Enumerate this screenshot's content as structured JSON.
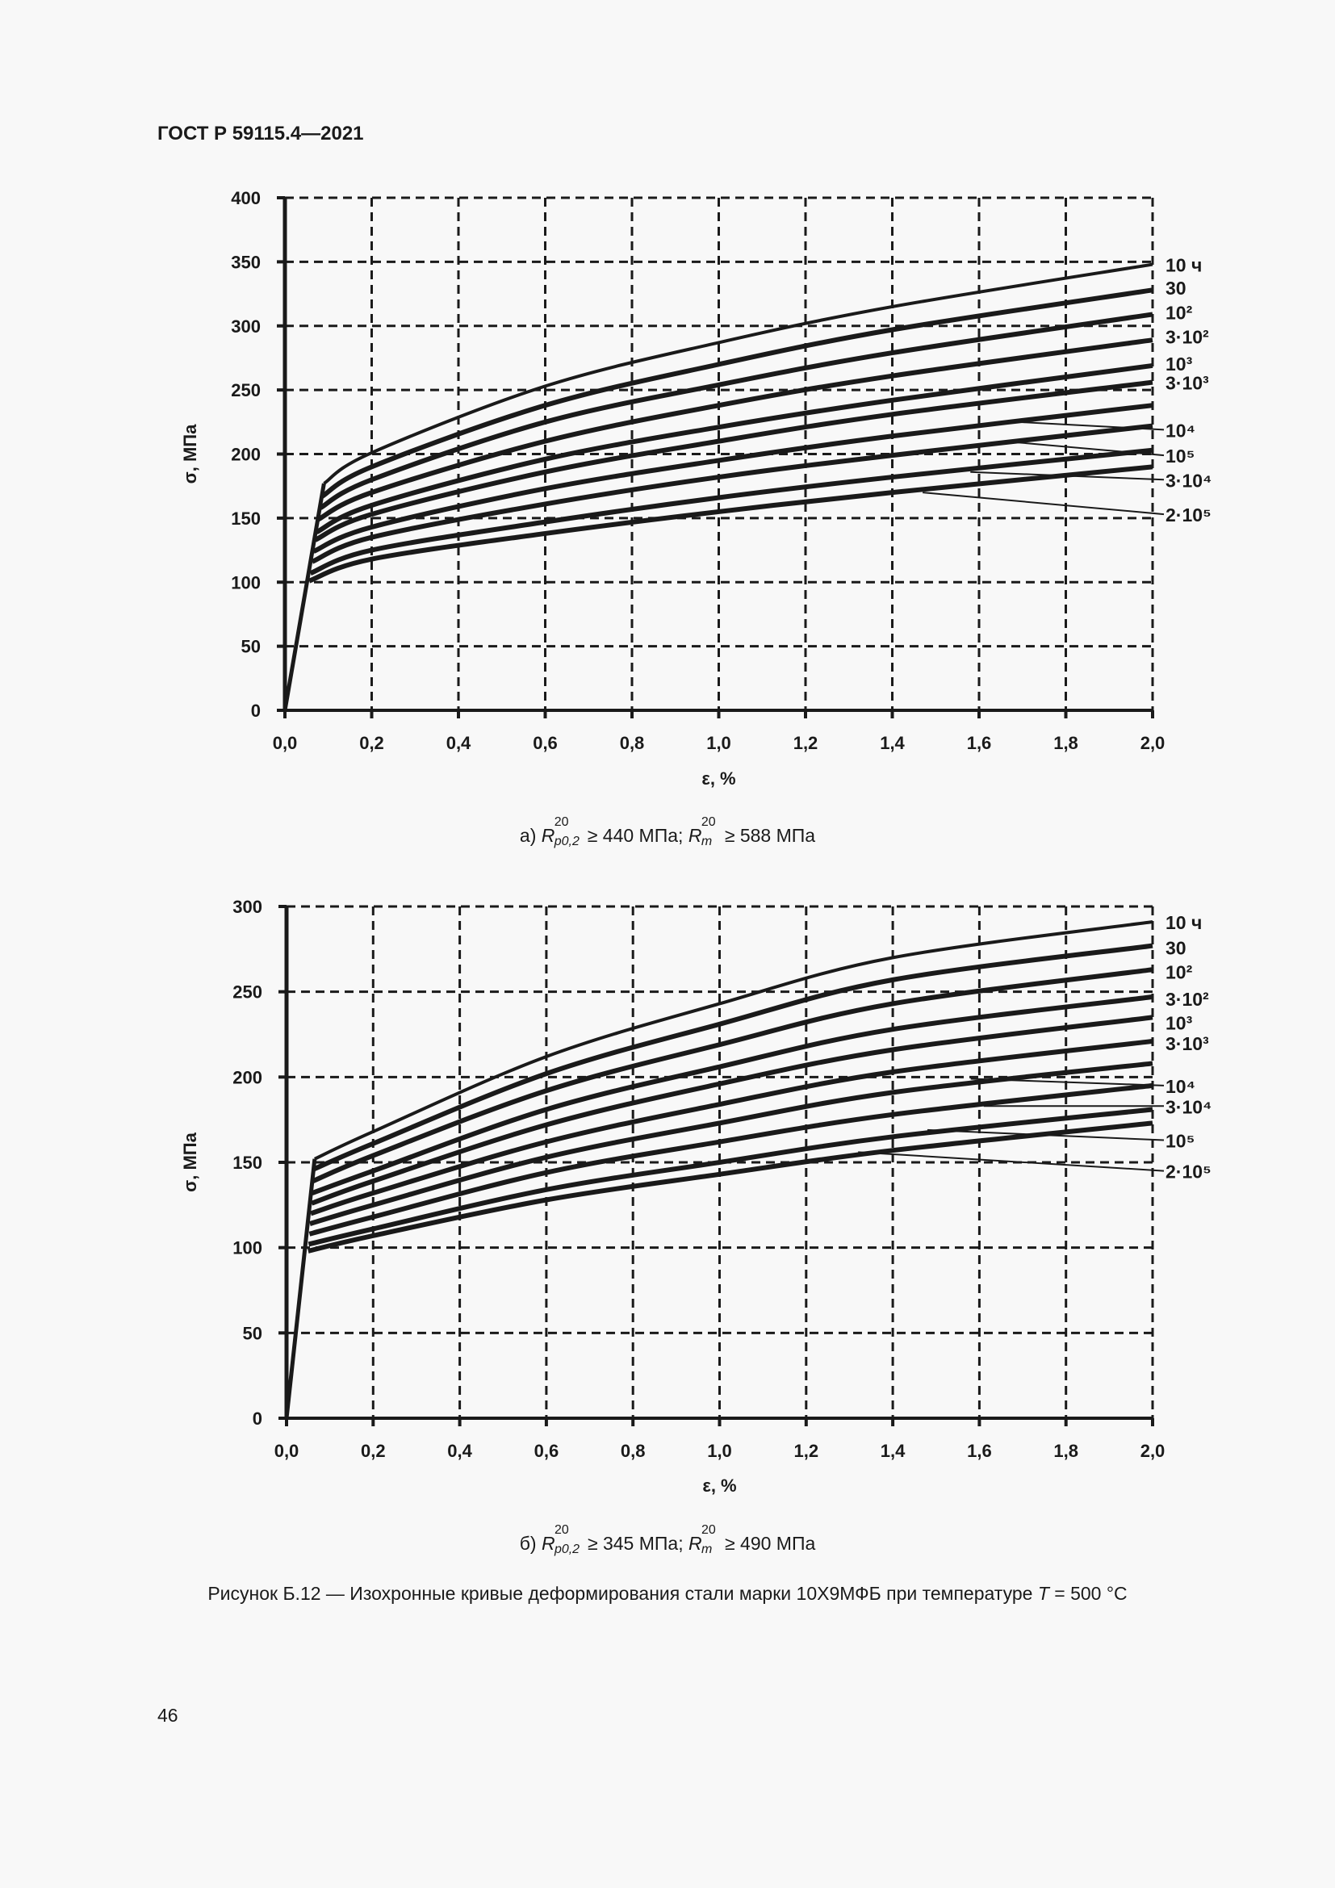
{
  "header": {
    "doc_id": "ГОСТ Р 59115.4—2021"
  },
  "page_number": "46",
  "figure_caption": {
    "prefix": "Рисунок Б.12 — Изохронные кривые деформирования стали марки 10Х9МФБ при температуре ",
    "var": "T",
    "suffix": " = 500 °C"
  },
  "subcaptions": [
    {
      "letter": "а)",
      "r1": "R",
      "r1_sup": "20",
      "r1_sub": "p0,2",
      "v1": "≥ 440 МПа;",
      "r2": "R",
      "r2_sup": "20",
      "r2_sub": "m",
      "v2": "≥ 588 МПа"
    },
    {
      "letter": "б)",
      "r1": "R",
      "r1_sup": "20",
      "r1_sub": "p0,2",
      "v1": "≥ 345 МПа;",
      "r2": "R",
      "r2_sup": "20",
      "r2_sub": "m",
      "v2": "≥ 490 МПа"
    }
  ],
  "chart_data": [
    {
      "type": "line",
      "xlabel": "ε, %",
      "ylabel": "σ, МПа",
      "xlim": [
        0,
        2.0
      ],
      "ylim": [
        0,
        400
      ],
      "xticks": [
        "0,0",
        "0,2",
        "0,4",
        "0,6",
        "0,8",
        "1,0",
        "1,2",
        "1,4",
        "1,6",
        "1,8",
        "2,0"
      ],
      "yticks": [
        "0",
        "50",
        "100",
        "150",
        "200",
        "250",
        "300",
        "350",
        "400"
      ],
      "grid": true,
      "grid_style": "dashed",
      "line_color": "#1a1a1a",
      "elastic_line": [
        [
          0,
          0
        ],
        [
          0.09,
          177
        ]
      ],
      "series": [
        {
          "name": "10 ч",
          "x": [
            0.09,
            0.2,
            0.6,
            1.0,
            1.4,
            2.0
          ],
          "y": [
            177,
            201,
            253,
            287,
            315,
            348
          ],
          "label_sigma": 348
        },
        {
          "name": "30",
          "x": [
            0.086,
            0.2,
            0.6,
            1.0,
            1.4,
            2.0
          ],
          "y": [
            167,
            190,
            238,
            270,
            297,
            328
          ],
          "label_sigma": 330
        },
        {
          "name": "10²",
          "x": [
            0.082,
            0.2,
            0.6,
            1.0,
            1.4,
            2.0
          ],
          "y": [
            158,
            180,
            225,
            254,
            279,
            309
          ],
          "label_sigma": 311
        },
        {
          "name": "3·10²",
          "x": [
            0.077,
            0.2,
            0.6,
            1.0,
            1.4,
            2.0
          ],
          "y": [
            149,
            170,
            210,
            238,
            261,
            289
          ],
          "label_sigma": 292
        },
        {
          "name": "10³",
          "x": [
            0.073,
            0.2,
            0.6,
            1.0,
            1.4,
            2.0
          ],
          "y": [
            139,
            160,
            196,
            221,
            242,
            269
          ],
          "label_sigma": 271
        },
        {
          "name": "3·10³",
          "x": [
            0.07,
            0.2,
            0.6,
            1.0,
            1.4,
            2.0
          ],
          "y": [
            133,
            153,
            186,
            210,
            231,
            256
          ],
          "label_sigma": 256
        },
        {
          "name": "10⁴",
          "x": [
            0.066,
            0.2,
            0.6,
            1.0,
            1.4,
            2.0
          ],
          "y": [
            124,
            143,
            173,
            195,
            214,
            238
          ],
          "label_sigma": 219,
          "leader_from": [
            1.69,
            225
          ]
        },
        {
          "name": "10⁵",
          "x": [
            0.063,
            0.2,
            0.6,
            1.0,
            1.4,
            2.0
          ],
          "y": [
            116,
            135,
            161,
            182,
            199,
            222
          ],
          "label_sigma": 199,
          "leader_from": [
            1.69,
            209
          ]
        },
        {
          "name": "3·10⁴",
          "x": [
            0.059,
            0.2,
            0.6,
            1.0,
            1.4,
            2.0
          ],
          "y": [
            107,
            125,
            147,
            166,
            182,
            203
          ],
          "label_sigma": 180,
          "leader_from": [
            1.58,
            186
          ]
        },
        {
          "name": "2·10⁵",
          "x": [
            0.056,
            0.2,
            0.6,
            1.0,
            1.4,
            2.0
          ],
          "y": [
            101,
            118,
            138,
            155,
            170,
            190
          ],
          "label_sigma": 153,
          "leader_from": [
            1.47,
            170
          ]
        }
      ]
    },
    {
      "type": "line",
      "xlabel": "ε, %",
      "ylabel": "σ, МПа",
      "xlim": [
        0,
        2.0
      ],
      "ylim": [
        0,
        300
      ],
      "xticks": [
        "0,0",
        "0,2",
        "0,4",
        "0,6",
        "0,8",
        "1,0",
        "1,2",
        "1,4",
        "1,6",
        "1,8",
        "2,0"
      ],
      "yticks": [
        "0",
        "50",
        "100",
        "150",
        "200",
        "250",
        "300"
      ],
      "grid": true,
      "grid_style": "dashed",
      "line_color": "#1a1a1a",
      "elastic_line": [
        [
          0,
          0
        ],
        [
          0.065,
          152
        ]
      ],
      "series": [
        {
          "name": "10 ч",
          "x": [
            0.065,
            0.2,
            0.6,
            1.0,
            1.4,
            2.0
          ],
          "y": [
            152,
            168,
            212,
            243,
            270,
            291
          ],
          "label_sigma": 291
        },
        {
          "name": "30",
          "x": [
            0.063,
            0.2,
            0.6,
            1.0,
            1.4,
            2.0
          ],
          "y": [
            146,
            161,
            202,
            231,
            257,
            277
          ],
          "label_sigma": 276
        },
        {
          "name": "10²",
          "x": [
            0.061,
            0.2,
            0.6,
            1.0,
            1.4,
            2.0
          ],
          "y": [
            139,
            154,
            192,
            219,
            243,
            263
          ],
          "label_sigma": 262
        },
        {
          "name": "3·10²",
          "x": [
            0.059,
            0.2,
            0.6,
            1.0,
            1.4,
            2.0
          ],
          "y": [
            132,
            145,
            181,
            206,
            228,
            247
          ],
          "label_sigma": 246
        },
        {
          "name": "10³",
          "x": [
            0.058,
            0.2,
            0.6,
            1.0,
            1.4,
            2.0
          ],
          "y": [
            126,
            139,
            172,
            196,
            216,
            235
          ],
          "label_sigma": 232
        },
        {
          "name": "3·10³",
          "x": [
            0.056,
            0.2,
            0.6,
            1.0,
            1.4,
            2.0
          ],
          "y": [
            120,
            132,
            162,
            184,
            203,
            221
          ],
          "label_sigma": 220
        },
        {
          "name": "10⁴",
          "x": [
            0.054,
            0.2,
            0.6,
            1.0,
            1.4,
            2.0
          ],
          "y": [
            114,
            125,
            153,
            173,
            191,
            208
          ],
          "label_sigma": 195,
          "leader_from": [
            1.58,
            199
          ]
        },
        {
          "name": "3·10⁴",
          "x": [
            0.053,
            0.2,
            0.6,
            1.0,
            1.4,
            2.0
          ],
          "y": [
            108,
            118,
            144,
            162,
            178,
            195
          ],
          "label_sigma": 183,
          "leader_from": [
            1.61,
            183
          ]
        },
        {
          "name": "10⁵",
          "x": [
            0.051,
            0.2,
            0.6,
            1.0,
            1.4,
            2.0
          ],
          "y": [
            102,
            111,
            134,
            150,
            165,
            181
          ],
          "label_sigma": 163,
          "leader_from": [
            1.48,
            169
          ]
        },
        {
          "name": "2·10⁵",
          "x": [
            0.05,
            0.2,
            0.6,
            1.0,
            1.4,
            2.0
          ],
          "y": [
            98,
            107,
            128,
            143,
            157,
            173
          ],
          "label_sigma": 145,
          "leader_from": [
            1.32,
            156
          ]
        }
      ]
    }
  ]
}
